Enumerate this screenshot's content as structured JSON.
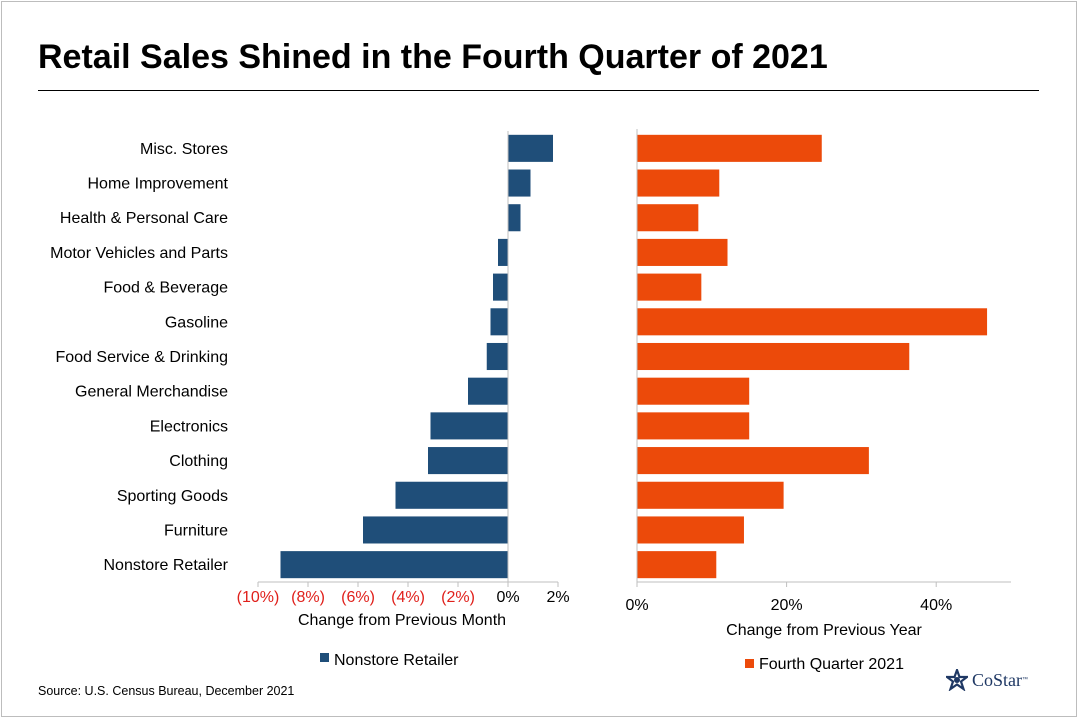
{
  "title": "Retail Sales Shined in the Fourth Quarter of 2021",
  "source": "Source: U.S. Census Bureau, December 2021",
  "logo_text": "CoStar",
  "logo_tm": "™",
  "colors": {
    "navy": "#1f4e79",
    "orange": "#ec4a0a",
    "negative_tick": "#e0201b"
  },
  "chart_data": [
    {
      "type": "bar",
      "orientation": "horizontal",
      "categories": [
        "Misc. Stores",
        "Home Improvement",
        "Health & Personal Care",
        "Motor Vehicles and Parts",
        "Food & Beverage",
        "Gasoline",
        "Food Service & Drinking",
        "General Merchandise",
        "Electronics",
        "Clothing",
        "Sporting Goods",
        "Furniture",
        "Nonstore Retailer"
      ],
      "series": [
        {
          "name": "Nonstore Retailer",
          "values": [
            1.8,
            0.9,
            0.5,
            -0.4,
            -0.6,
            -0.7,
            -0.85,
            -1.6,
            -3.1,
            -3.2,
            -4.5,
            -5.8,
            -9.1
          ]
        }
      ],
      "xlabel": "Change from Previous Month",
      "xlim": [
        -10,
        2
      ],
      "xticks": [
        -10,
        -8,
        -6,
        -4,
        -2,
        0,
        2
      ],
      "xtick_labels": [
        "(10%)",
        "(8%)",
        "(6%)",
        "(4%)",
        "(2%)",
        "0%",
        "2%"
      ],
      "legend": "bottom",
      "grid": false
    },
    {
      "type": "bar",
      "orientation": "horizontal",
      "categories": [
        "Misc. Stores",
        "Home Improvement",
        "Health & Personal Care",
        "Motor Vehicles and Parts",
        "Food & Beverage",
        "Gasoline",
        "Food Service & Drinking",
        "General Merchandise",
        "Electronics",
        "Clothing",
        "Sporting Goods",
        "Furniture",
        "Nonstore Retailer"
      ],
      "series": [
        {
          "name": "Fourth Quarter 2021",
          "values": [
            24.7,
            11.0,
            8.2,
            12.1,
            8.6,
            46.8,
            36.4,
            15.0,
            15.0,
            31.0,
            19.6,
            14.3,
            10.6
          ]
        }
      ],
      "xlabel": "Change from Previous Year",
      "xlim": [
        0,
        50
      ],
      "xticks": [
        0,
        20,
        40
      ],
      "xtick_labels": [
        "0%",
        "20%",
        "40%"
      ],
      "legend": "bottom",
      "grid": false
    }
  ]
}
